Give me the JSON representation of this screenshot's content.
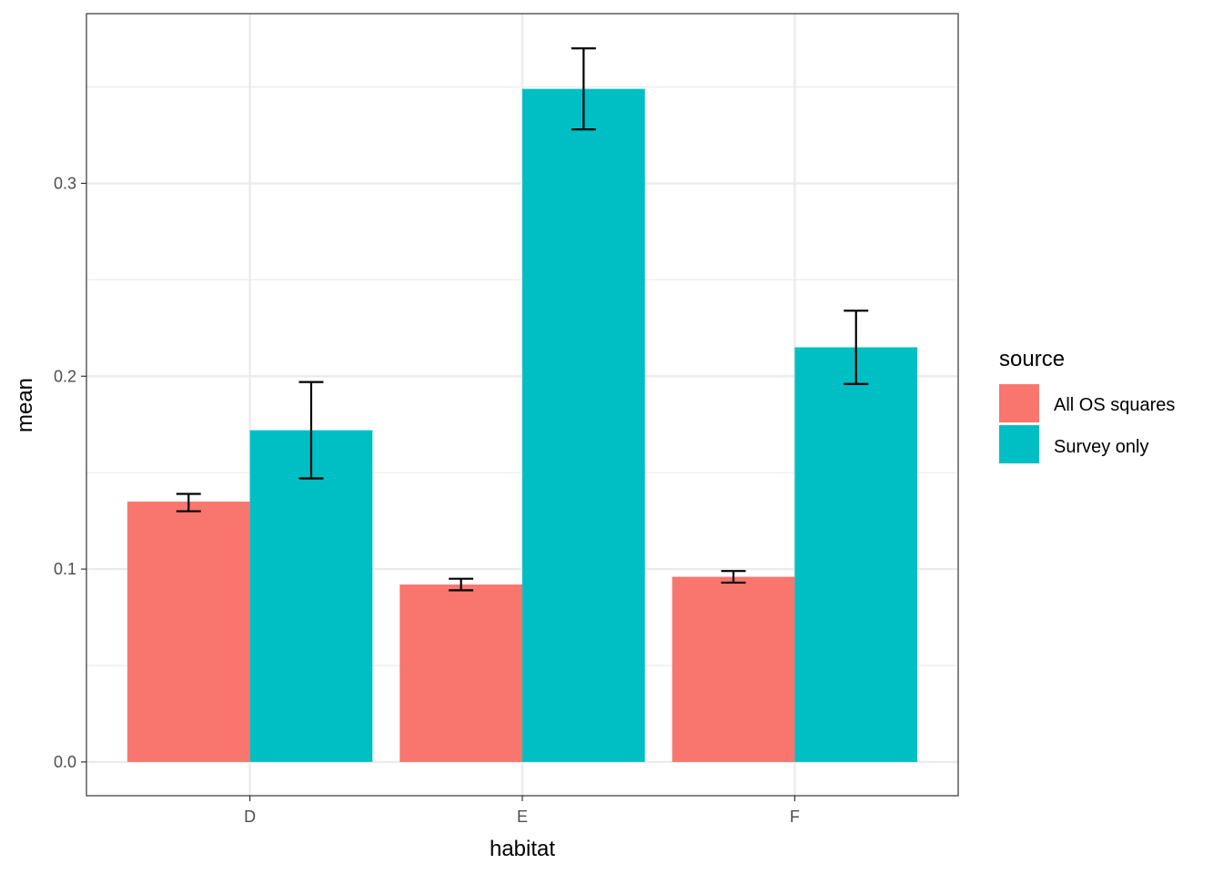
{
  "chart_data": {
    "type": "bar",
    "xlabel": "habitat",
    "ylabel": "mean",
    "categories": [
      "D",
      "E",
      "F"
    ],
    "series": [
      {
        "name": "All OS squares",
        "color": "#F8766D",
        "values": [
          0.135,
          0.092,
          0.096
        ],
        "error_low": [
          0.13,
          0.089,
          0.093
        ],
        "error_high": [
          0.139,
          0.095,
          0.099
        ]
      },
      {
        "name": "Survey only",
        "color": "#00BFC4",
        "values": [
          0.172,
          0.349,
          0.215
        ],
        "error_low": [
          0.147,
          0.328,
          0.196
        ],
        "error_high": [
          0.197,
          0.37,
          0.234
        ]
      }
    ],
    "ylim": [
      -0.0175,
      0.388
    ],
    "y_ticks": [
      "0.0",
      "0.1",
      "0.2",
      "0.3"
    ],
    "y_tick_values": [
      0.0,
      0.1,
      0.2,
      0.3
    ],
    "y_minor_values": [
      0.05,
      0.15,
      0.25,
      0.35
    ],
    "grid": true,
    "legend": {
      "title": "source",
      "position": "right"
    }
  }
}
